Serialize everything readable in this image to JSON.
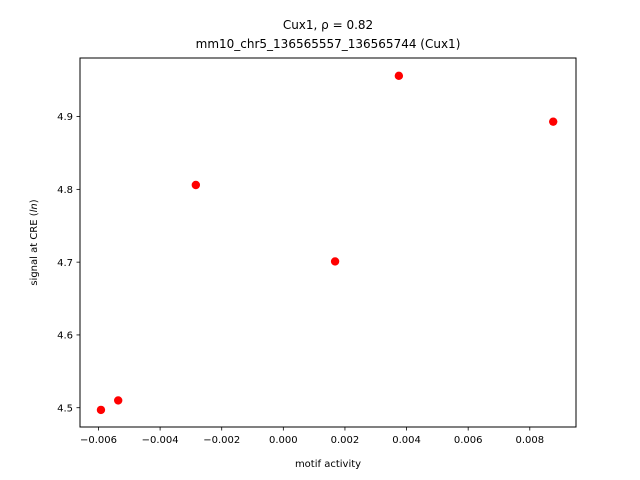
{
  "chart_data": {
    "type": "scatter",
    "title_line1": "Cux1, ρ = 0.82",
    "title_line2": "mm10_chr5_136565557_136565744 (Cux1)",
    "xlabel": "motif activity",
    "ylabel_prefix": "signal at CRE (",
    "ylabel_italic": "ln",
    "ylabel_suffix": ")",
    "xlim": [
      -0.0066,
      0.0095
    ],
    "ylim": [
      4.4735,
      4.9805
    ],
    "xticks": [
      -0.006,
      -0.004,
      -0.002,
      0.0,
      0.002,
      0.004,
      0.006,
      0.008
    ],
    "xtick_labels": [
      "−0.006",
      "−0.004",
      "−0.002",
      "0.000",
      "0.002",
      "0.004",
      "0.006",
      "0.008"
    ],
    "yticks": [
      4.5,
      4.6,
      4.7,
      4.8,
      4.9
    ],
    "ytick_labels": [
      "4.5",
      "4.6",
      "4.7",
      "4.8",
      "4.9"
    ],
    "grid": false,
    "marker_color": "#ff0000",
    "points": [
      {
        "x": -0.00592,
        "y": 4.497
      },
      {
        "x": -0.00536,
        "y": 4.51
      },
      {
        "x": -0.00284,
        "y": 4.806
      },
      {
        "x": 0.00168,
        "y": 4.701
      },
      {
        "x": 0.00375,
        "y": 4.956
      },
      {
        "x": 0.00876,
        "y": 4.893
      }
    ]
  }
}
